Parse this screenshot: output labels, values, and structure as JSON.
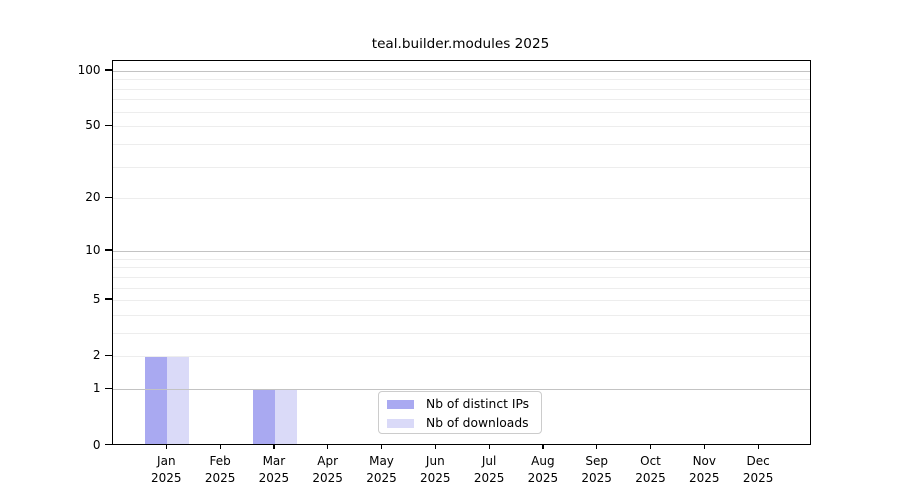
{
  "chart_data": {
    "type": "bar",
    "title": "teal.builder.modules 2025",
    "categories": [
      "Jan",
      "Feb",
      "Mar",
      "Apr",
      "May",
      "Jun",
      "Jul",
      "Aug",
      "Sep",
      "Oct",
      "Nov",
      "Dec"
    ],
    "category_year": "2025",
    "series": [
      {
        "name": "Nb of distinct IPs",
        "color": "#a9a9f1",
        "values": [
          2,
          0,
          1,
          0,
          0,
          0,
          0,
          0,
          0,
          0,
          0,
          0
        ]
      },
      {
        "name": "Nb of downloads",
        "color": "#dadaf8",
        "values": [
          2,
          0,
          1,
          0,
          0,
          0,
          0,
          0,
          0,
          0,
          0,
          0
        ]
      }
    ],
    "y_axis": {
      "scale": "log1p",
      "tick_values": [
        0,
        1,
        2,
        5,
        10,
        20,
        50,
        100
      ],
      "major_gridlines": [
        1,
        10,
        100
      ],
      "minor_gridlines": [
        2,
        3,
        4,
        5,
        6,
        7,
        8,
        9,
        20,
        30,
        40,
        50,
        60,
        70,
        80,
        90
      ],
      "range_top": 113
    },
    "legend_position": "bottom-center",
    "colors": {
      "major_grid": "#c3c3c3",
      "minor_grid": "#ededed",
      "axis": "#000000",
      "background": "#ffffff"
    }
  }
}
